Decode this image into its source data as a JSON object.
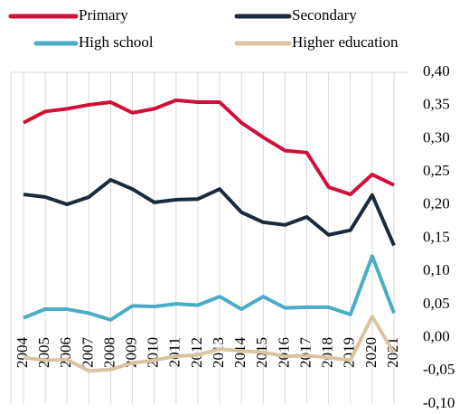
{
  "chart_data": {
    "type": "line",
    "x": [
      "2004",
      "2005",
      "2006",
      "2007",
      "2008",
      "2009",
      "2010",
      "2011",
      "2012",
      "2013",
      "2014",
      "2015",
      "2016",
      "2017",
      "2018",
      "2019",
      "2020",
      "2021"
    ],
    "series": [
      {
        "name": "Primary",
        "color": "#d0103a",
        "values": [
          0.324,
          0.341,
          0.345,
          0.351,
          0.355,
          0.339,
          0.345,
          0.358,
          0.355,
          0.355,
          0.324,
          0.302,
          0.282,
          0.279,
          0.227,
          0.216,
          0.246,
          0.23
        ]
      },
      {
        "name": "Secondary",
        "color": "#1c2b3c",
        "values": [
          0.216,
          0.212,
          0.201,
          0.212,
          0.238,
          0.224,
          0.204,
          0.208,
          0.209,
          0.224,
          0.189,
          0.174,
          0.17,
          0.182,
          0.155,
          0.162,
          0.215,
          0.139
        ]
      },
      {
        "name": "High school",
        "color": "#4bacc6",
        "values": [
          0.03,
          0.043,
          0.043,
          0.037,
          0.027,
          0.048,
          0.047,
          0.051,
          0.049,
          0.062,
          0.043,
          0.062,
          0.045,
          0.046,
          0.046,
          0.035,
          0.123,
          0.037
        ]
      },
      {
        "name": "Higher education",
        "color": "#d9c4a0",
        "values": [
          -0.03,
          -0.034,
          -0.033,
          -0.05,
          -0.048,
          -0.038,
          -0.034,
          -0.028,
          -0.026,
          -0.017,
          -0.02,
          -0.022,
          -0.028,
          -0.027,
          -0.03,
          -0.034,
          0.032,
          -0.023
        ]
      }
    ],
    "ylim": [
      -0.1,
      0.4
    ],
    "yticks": [
      {
        "value": 0.4,
        "label": "0,40"
      },
      {
        "value": 0.35,
        "label": "0,35"
      },
      {
        "value": 0.3,
        "label": "0,30"
      },
      {
        "value": 0.25,
        "label": "0,25"
      },
      {
        "value": 0.2,
        "label": "0,20"
      },
      {
        "value": 0.15,
        "label": "0,15"
      },
      {
        "value": 0.1,
        "label": "0,10"
      },
      {
        "value": 0.05,
        "label": "0,05"
      },
      {
        "value": 0,
        "label": "0,00"
      },
      {
        "value": -0.05,
        "label": "-0,05"
      },
      {
        "value": -0.1,
        "label": "-0,10"
      }
    ],
    "grid": "x",
    "y_axis_side": "right",
    "legend": "top"
  }
}
